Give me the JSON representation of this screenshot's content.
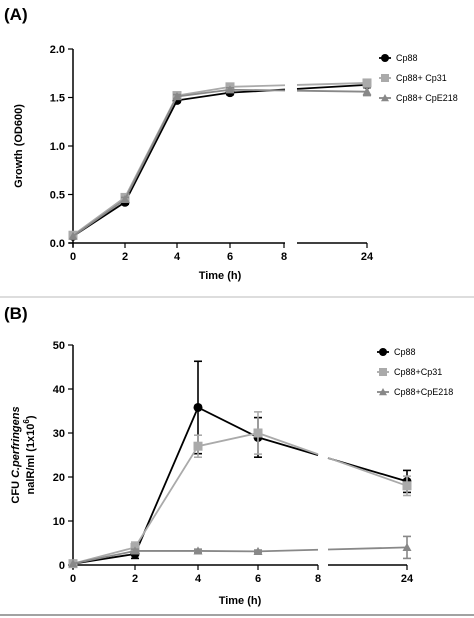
{
  "chart_data": [
    {
      "panel": "(A)",
      "type": "line",
      "xlabel": "Time (h)",
      "ylabel": "Growth (OD600)",
      "x": [
        0,
        2,
        4,
        6,
        24
      ],
      "x_ticks": [
        "0",
        "2",
        "4",
        "6",
        "8",
        "24"
      ],
      "x_axis_break": [
        8,
        24
      ],
      "ylim": [
        0,
        2.0
      ],
      "y_ticks": [
        "0.0",
        "0.5",
        "1.0",
        "1.5",
        "2.0"
      ],
      "legend_position": "right",
      "series": [
        {
          "name": "Cp88",
          "color": "#000000",
          "marker": "circle",
          "values": [
            0.07,
            0.42,
            1.47,
            1.55,
            1.63
          ],
          "errors": [
            0,
            0.02,
            0.02,
            0.02,
            0.03
          ]
        },
        {
          "name": "Cp88+ Cp31",
          "color": "#aaaaaa",
          "marker": "square",
          "values": [
            0.08,
            0.47,
            1.52,
            1.61,
            1.65
          ],
          "errors": [
            0,
            0.02,
            0.02,
            0.02,
            0.03
          ]
        },
        {
          "name": "Cp88+ CpE218",
          "color": "#888888",
          "marker": "triangle",
          "values": [
            0.07,
            0.45,
            1.51,
            1.58,
            1.56
          ],
          "errors": [
            0,
            0.02,
            0.02,
            0.02,
            0.04
          ]
        }
      ]
    },
    {
      "panel": "(B)",
      "type": "line",
      "xlabel": "Time (h)",
      "ylabel_line1": "CFU C.perfringens",
      "ylabel_line2": "nalR/ml (1x10",
      "ylabel_sup": "6",
      "ylabel_line2_close": ")",
      "x": [
        0,
        2,
        4,
        6,
        24
      ],
      "x_ticks": [
        "0",
        "2",
        "4",
        "6",
        "8",
        "24"
      ],
      "x_axis_break": [
        8,
        24
      ],
      "ylim": [
        0,
        50
      ],
      "y_ticks": [
        "0",
        "10",
        "20",
        "30",
        "40",
        "50"
      ],
      "legend_position": "right",
      "series": [
        {
          "name": "Cp88",
          "color": "#000000",
          "marker": "circle",
          "values": [
            0.3,
            2.5,
            35.8,
            29.0,
            19.0
          ],
          "errors": [
            0,
            1.0,
            10.5,
            4.5,
            2.5
          ]
        },
        {
          "name": "Cp88+Cp31",
          "color": "#aaaaaa",
          "marker": "square",
          "values": [
            0.3,
            4.0,
            27.0,
            30.0,
            18.0
          ],
          "errors": [
            0,
            1.2,
            2.5,
            4.8,
            2.2
          ]
        },
        {
          "name": "Cp88+CpE218",
          "color": "#888888",
          "marker": "triangle",
          "values": [
            0.3,
            3.2,
            3.2,
            3.1,
            4.0
          ],
          "errors": [
            0,
            0.4,
            0.4,
            0.3,
            2.5
          ]
        }
      ]
    }
  ]
}
